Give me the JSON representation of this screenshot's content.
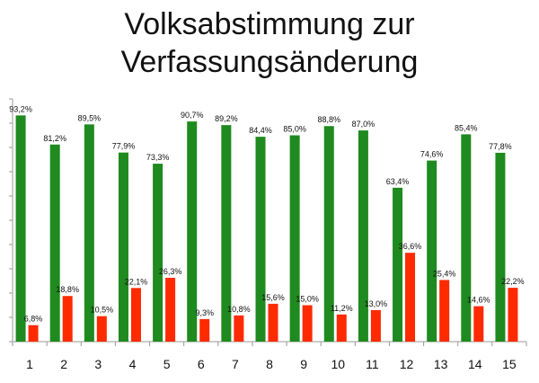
{
  "title_line1": "Volksabstimmung zur",
  "title_line2": "Verfassungsänderung",
  "chart_data": {
    "type": "bar",
    "title": "Volksabstimmung zur Verfassungsänderung",
    "categories": [
      "1",
      "2",
      "3",
      "4",
      "5",
      "6",
      "7",
      "8",
      "9",
      "10",
      "11",
      "12",
      "13",
      "14",
      "15"
    ],
    "ylim": [
      0,
      100
    ],
    "grid": false,
    "series": [
      {
        "color": "#1f8a1f",
        "values": [
          93.2,
          81.2,
          89.5,
          77.9,
          73.3,
          90.7,
          89.2,
          84.4,
          85.0,
          88.8,
          87.0,
          63.4,
          74.6,
          85.4,
          77.8
        ],
        "labels": [
          "93,2%",
          "81,2%",
          "89,5%",
          "77,9%",
          "73,3%",
          "90,7%",
          "89,2%",
          "84,4%",
          "85,0%",
          "88,8%",
          "87,0%",
          "63,4%",
          "74,6%",
          "85,4%",
          "77,8%"
        ]
      },
      {
        "color": "#ff2a00",
        "values": [
          6.8,
          18.8,
          10.5,
          22.1,
          26.3,
          9.3,
          10.8,
          15.6,
          15.0,
          11.2,
          13.0,
          36.6,
          25.4,
          14.6,
          22.2
        ],
        "labels": [
          "6,8%",
          "18,8%",
          "10,5%",
          "22,1%",
          "26,3%",
          "9,3%",
          "10,8%",
          "15,6%",
          "15,0%",
          "11,2%",
          "13,0%",
          "36,6%",
          "25,4%",
          "14,6%",
          "22,2%"
        ]
      }
    ]
  }
}
